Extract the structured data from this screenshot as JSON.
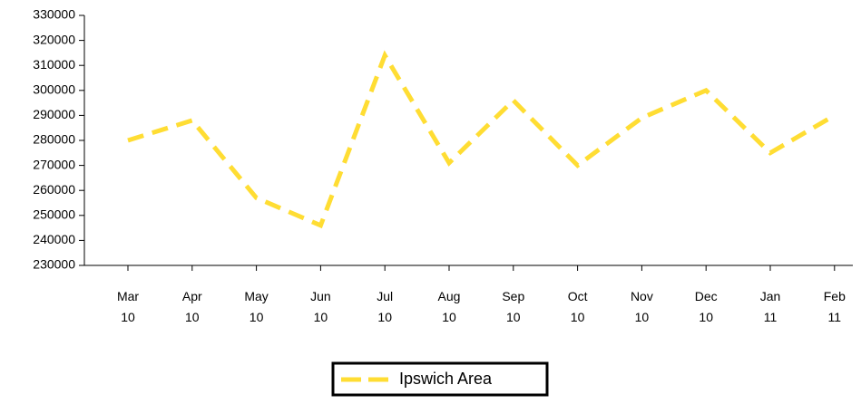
{
  "chart_data": {
    "type": "line",
    "categories": [
      "Mar 10",
      "Apr 10",
      "May 10",
      "Jun 10",
      "Jul 10",
      "Aug 10",
      "Sep 10",
      "Oct 10",
      "Nov 10",
      "Dec 10",
      "Jan 11",
      "Feb 11"
    ],
    "series": [
      {
        "name": "Ipswich Area",
        "color": "#ffdd33",
        "values": [
          280000,
          288000,
          257000,
          246000,
          314000,
          271000,
          296000,
          270000,
          289000,
          300000,
          275000,
          290000
        ]
      }
    ],
    "ylim": [
      230000,
      330000
    ],
    "yticks": [
      230000,
      240000,
      250000,
      260000,
      270000,
      280000,
      290000,
      300000,
      310000,
      320000,
      330000
    ],
    "grid": false,
    "legend": "bottom"
  }
}
